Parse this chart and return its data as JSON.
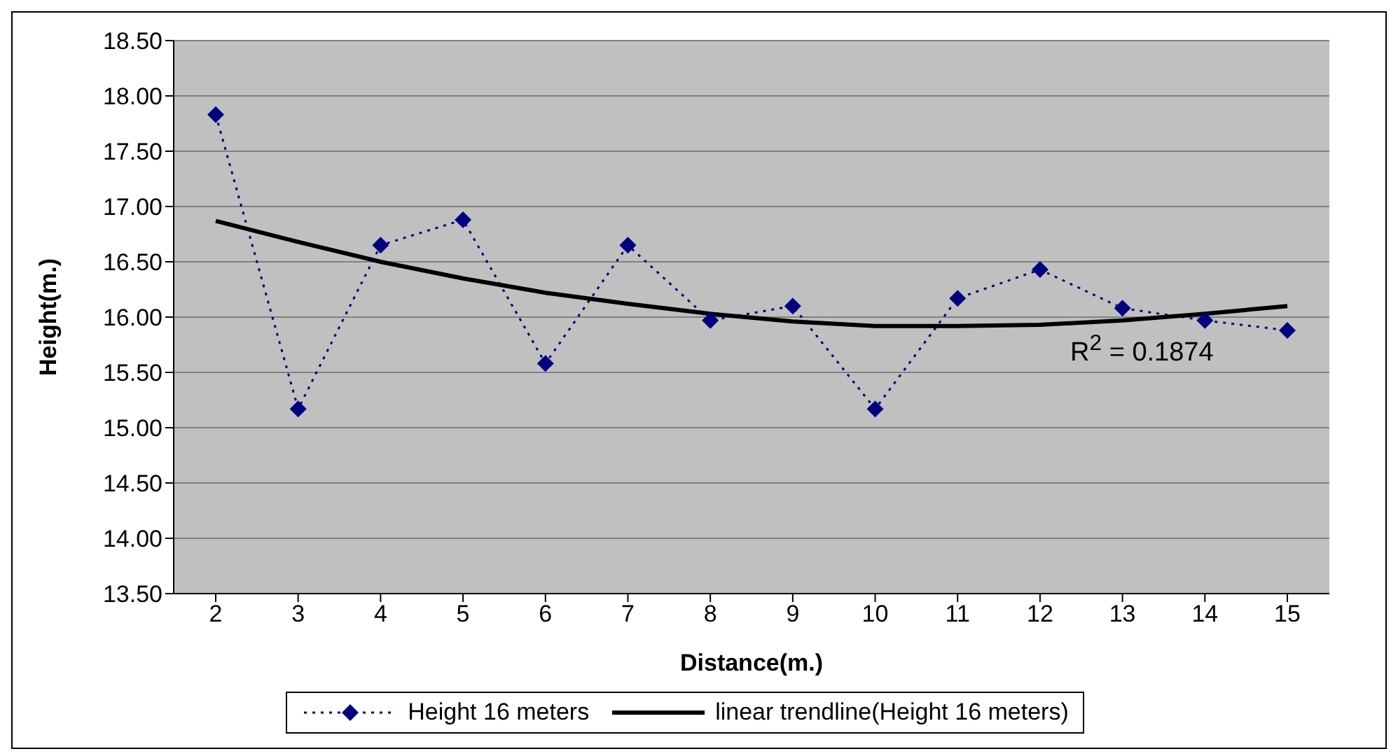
{
  "chart_data": {
    "type": "line",
    "xlabel": "Distance(m.)",
    "ylabel": "Height(m.)",
    "categories": [
      "2",
      "3",
      "4",
      "5",
      "6",
      "7",
      "8",
      "9",
      "10",
      "11",
      "12",
      "13",
      "14",
      "15"
    ],
    "series": [
      {
        "name": "Height 16 meters",
        "color": "#000080",
        "line_style": "dotted",
        "marker": "diamond",
        "values": [
          17.83,
          15.17,
          16.65,
          16.88,
          15.58,
          16.65,
          15.97,
          16.1,
          15.17,
          16.17,
          16.43,
          16.08,
          15.97,
          15.88
        ]
      },
      {
        "name": "linear trendline(Height 16 meters)",
        "color": "#000000",
        "line_style": "solid",
        "marker": "none",
        "values": [
          16.87,
          16.68,
          16.5,
          16.35,
          16.22,
          16.12,
          16.03,
          15.96,
          15.92,
          15.92,
          15.93,
          15.97,
          16.03,
          16.1
        ]
      }
    ],
    "ylim": [
      13.5,
      18.5
    ],
    "yticks": [
      {
        "value": 13.5,
        "label": "13.50"
      },
      {
        "value": 14,
        "label": "14.00"
      },
      {
        "value": 14.5,
        "label": "14.50"
      },
      {
        "value": 15,
        "label": "15.00"
      },
      {
        "value": 15.5,
        "label": "15.50"
      },
      {
        "value": 16,
        "label": "16.00"
      },
      {
        "value": 16.5,
        "label": "16.50"
      },
      {
        "value": 17,
        "label": "17.00"
      },
      {
        "value": 17.5,
        "label": "17.50"
      },
      {
        "value": 18,
        "label": "18.00"
      },
      {
        "value": 18.5,
        "label": "18.50"
      }
    ],
    "grid": "y",
    "legend": "bottom",
    "annotations": [
      "R$^{2}$ = 0.1874"
    ]
  }
}
